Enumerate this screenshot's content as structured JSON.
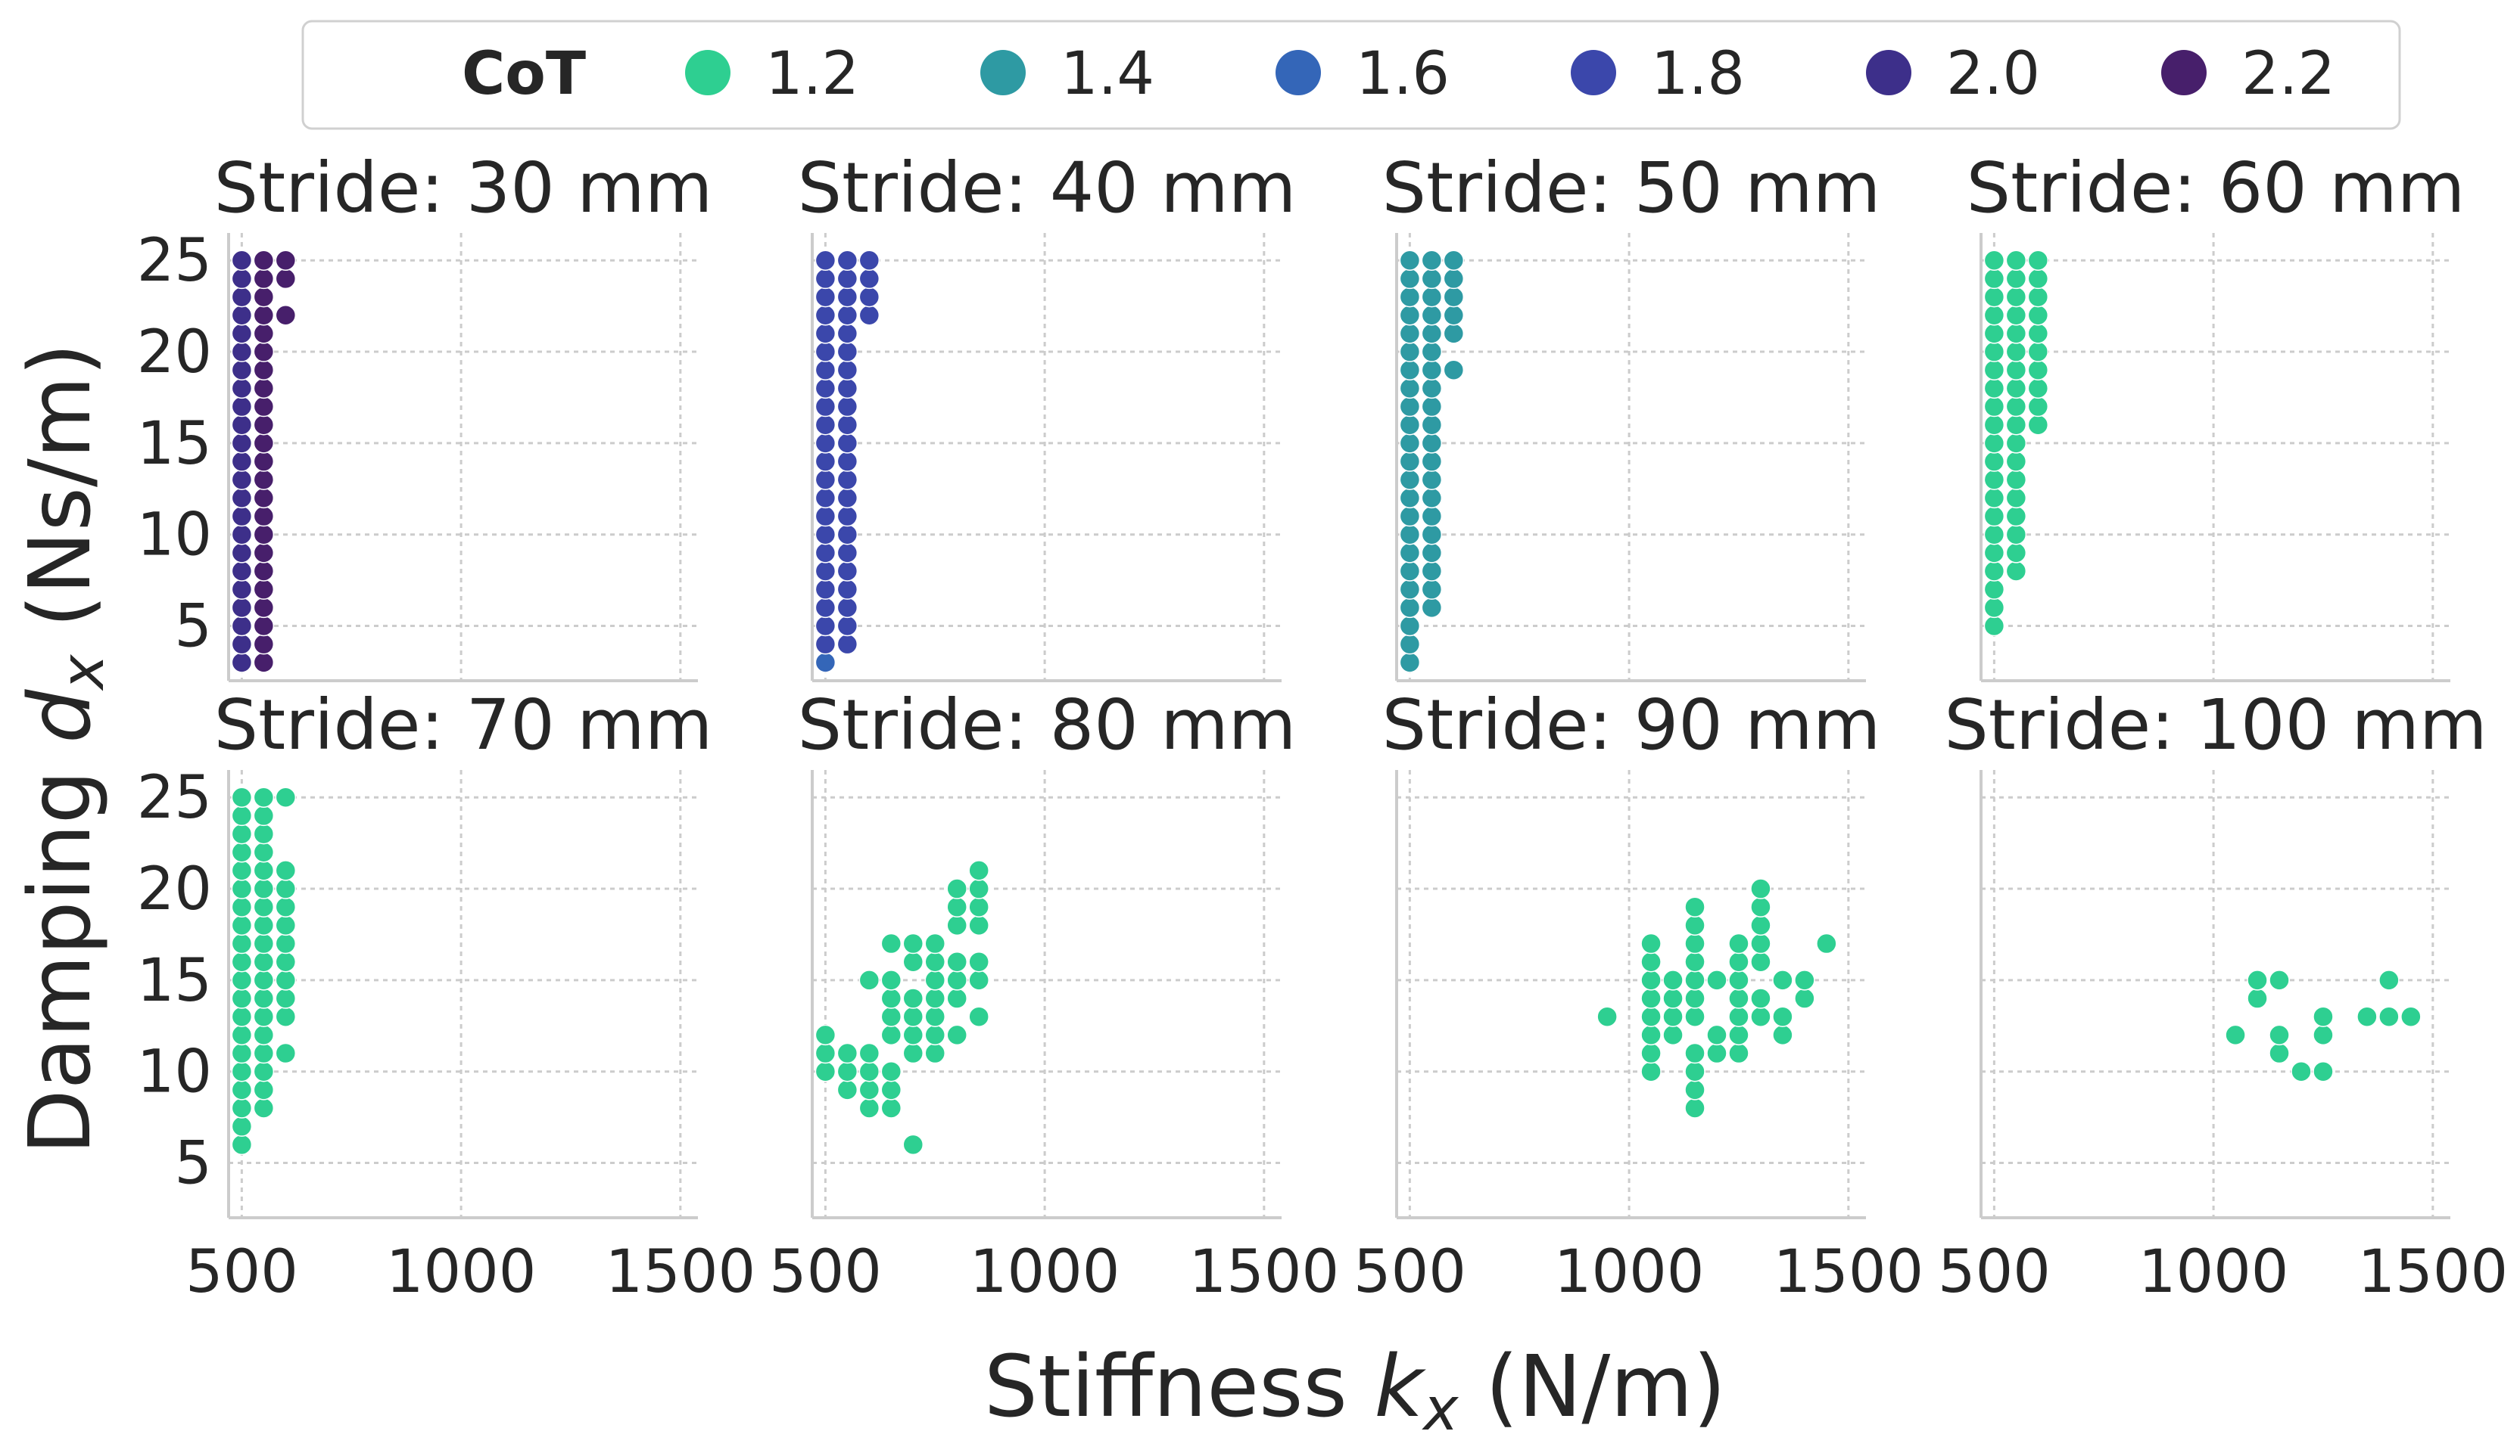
{
  "chart_data": {
    "type": "scatter",
    "title": "",
    "xlabel": "Stiffness",
    "xlabel_var": "k",
    "xlabel_sub": "x",
    "xlabel_unit": "(N/m)",
    "ylabel": "Damping",
    "ylabel_var": "d",
    "ylabel_sub": "x",
    "ylabel_unit": "(Ns/m)",
    "xlim": [
      470,
      1540
    ],
    "ylim": [
      2,
      26.5
    ],
    "xticks": [
      500,
      1000,
      1500
    ],
    "yticks": [
      5,
      10,
      15,
      20,
      25
    ],
    "grid": true,
    "legend": {
      "title": "CoT",
      "placement": "top-center",
      "entries": [
        {
          "label": "1.2",
          "color": "#2ecf91"
        },
        {
          "label": "1.4",
          "color": "#2e9aa3"
        },
        {
          "label": "1.6",
          "color": "#3466b8"
        },
        {
          "label": "1.8",
          "color": "#3b47ab"
        },
        {
          "label": "2.0",
          "color": "#3d2f8a"
        },
        {
          "label": "2.2",
          "color": "#471f6b"
        }
      ]
    },
    "panels": [
      {
        "title": "Stride: 30 mm",
        "series": [
          {
            "x": 500,
            "y": [
              3,
              4,
              5,
              6,
              7,
              8,
              9,
              10,
              11,
              12,
              13,
              14,
              15,
              16,
              17,
              18,
              19,
              20,
              21,
              22,
              23,
              24,
              25
            ],
            "color": "#3d2f8a"
          },
          {
            "x": 550,
            "y": [
              3,
              4,
              5,
              6,
              7,
              8,
              9,
              10,
              11,
              12,
              13,
              14,
              15,
              16,
              17,
              18,
              19,
              20,
              21,
              22,
              23,
              24,
              25
            ],
            "color": "#471f6b"
          },
          {
            "x": 600,
            "y": [
              22,
              24,
              25
            ],
            "color": "#471f6b"
          }
        ]
      },
      {
        "title": "Stride: 40 mm",
        "series": [
          {
            "x": 500,
            "y": [
              3
            ],
            "color": "#3466b8"
          },
          {
            "x": 500,
            "y": [
              4,
              5,
              6,
              7,
              8,
              9,
              10,
              11,
              12,
              13,
              14,
              15,
              16,
              17,
              18,
              19,
              20,
              21,
              22,
              23,
              24,
              25
            ],
            "color": "#3b47ab"
          },
          {
            "x": 550,
            "y": [
              4,
              5,
              6,
              7,
              8,
              9,
              10,
              11,
              12,
              13,
              14,
              15,
              16,
              17,
              18,
              19,
              20,
              21,
              22,
              23,
              24,
              25
            ],
            "color": "#3b47ab"
          },
          {
            "x": 600,
            "y": [
              22,
              23,
              24,
              25
            ],
            "color": "#3b47ab"
          }
        ]
      },
      {
        "title": "Stride: 50 mm",
        "series": [
          {
            "x": 500,
            "y": [
              3,
              4,
              5,
              6,
              7,
              8,
              9,
              10,
              11,
              12,
              13,
              14,
              15,
              16,
              17,
              18,
              19,
              20,
              21,
              22,
              23,
              24,
              25
            ],
            "color": "#2e9aa3"
          },
          {
            "x": 550,
            "y": [
              6,
              7,
              8,
              9,
              10,
              11,
              12,
              13,
              14,
              15,
              16,
              17,
              18,
              19,
              20,
              21,
              22,
              23,
              24,
              25
            ],
            "color": "#2e9aa3"
          },
          {
            "x": 600,
            "y": [
              19,
              21,
              22,
              23,
              24,
              25
            ],
            "color": "#2e9aa3"
          }
        ]
      },
      {
        "title": "Stride: 60 mm",
        "series": [
          {
            "x": 500,
            "y": [
              5,
              6,
              7,
              8,
              9,
              10,
              11,
              12,
              13,
              14,
              15,
              16,
              17,
              18,
              19,
              20,
              21,
              22,
              23,
              24,
              25
            ],
            "color": "#2ecf91"
          },
          {
            "x": 550,
            "y": [
              8,
              9,
              10,
              11,
              12,
              13,
              14,
              15,
              16,
              17,
              18,
              19,
              20,
              21,
              22,
              23,
              24,
              25
            ],
            "color": "#2ecf91"
          },
          {
            "x": 600,
            "y": [
              16,
              17,
              18,
              19,
              20,
              21,
              22,
              23,
              24,
              25
            ],
            "color": "#2ecf91"
          }
        ]
      },
      {
        "title": "Stride: 70 mm",
        "series": [
          {
            "x": 500,
            "y": [
              6,
              7,
              8,
              9,
              10,
              11,
              12,
              13,
              14,
              15,
              16,
              17,
              18,
              19,
              20,
              21,
              22,
              23,
              24,
              25
            ],
            "color": "#2ecf91"
          },
          {
            "x": 550,
            "y": [
              8,
              9,
              10,
              11,
              12,
              13,
              14,
              15,
              16,
              17,
              18,
              19,
              20,
              21,
              22,
              23,
              24,
              25
            ],
            "color": "#2ecf91"
          },
          {
            "x": 600,
            "y": [
              11,
              13,
              14,
              15,
              16,
              17,
              18,
              19,
              20,
              21,
              25
            ],
            "color": "#2ecf91"
          }
        ]
      },
      {
        "title": "Stride: 80 mm",
        "series": [
          {
            "x": 500,
            "y": [
              10,
              11,
              12
            ],
            "color": "#2ecf91"
          },
          {
            "x": 550,
            "y": [
              9,
              10,
              11
            ],
            "color": "#2ecf91"
          },
          {
            "x": 600,
            "y": [
              8,
              9,
              10,
              11,
              15
            ],
            "color": "#2ecf91"
          },
          {
            "x": 650,
            "y": [
              8,
              9,
              10,
              12,
              13,
              14,
              15,
              17
            ],
            "color": "#2ecf91"
          },
          {
            "x": 700,
            "y": [
              6,
              11,
              12,
              13,
              14,
              16,
              17
            ],
            "color": "#2ecf91"
          },
          {
            "x": 750,
            "y": [
              11,
              12,
              13,
              14,
              15,
              16,
              17
            ],
            "color": "#2ecf91"
          },
          {
            "x": 800,
            "y": [
              12,
              14,
              15,
              16,
              18,
              19,
              20
            ],
            "color": "#2ecf91"
          },
          {
            "x": 850,
            "y": [
              13,
              15,
              16,
              18,
              19,
              20,
              21
            ],
            "color": "#2ecf91"
          }
        ]
      },
      {
        "title": "Stride: 90 mm",
        "series": [
          {
            "x": 950,
            "y": [
              13
            ],
            "color": "#2ecf91"
          },
          {
            "x": 1050,
            "y": [
              10,
              11,
              12,
              13,
              14,
              15,
              16,
              17
            ],
            "color": "#2ecf91"
          },
          {
            "x": 1100,
            "y": [
              12,
              13,
              14,
              15
            ],
            "color": "#2ecf91"
          },
          {
            "x": 1150,
            "y": [
              8,
              9,
              10,
              11,
              13,
              14,
              15,
              16,
              17,
              18,
              19
            ],
            "color": "#2ecf91"
          },
          {
            "x": 1200,
            "y": [
              11,
              12,
              15
            ],
            "color": "#2ecf91"
          },
          {
            "x": 1250,
            "y": [
              11,
              12,
              13,
              14,
              15,
              16,
              17
            ],
            "color": "#2ecf91"
          },
          {
            "x": 1300,
            "y": [
              13,
              14,
              16,
              17,
              18,
              19,
              20
            ],
            "color": "#2ecf91"
          },
          {
            "x": 1350,
            "y": [
              12,
              13,
              15
            ],
            "color": "#2ecf91"
          },
          {
            "x": 1400,
            "y": [
              14,
              15
            ],
            "color": "#2ecf91"
          },
          {
            "x": 1450,
            "y": [
              17
            ],
            "color": "#2ecf91"
          }
        ]
      },
      {
        "title": "Stride: 100 mm",
        "series": [
          {
            "x": 1050,
            "y": [
              12
            ],
            "color": "#2ecf91"
          },
          {
            "x": 1100,
            "y": [
              14,
              15
            ],
            "color": "#2ecf91"
          },
          {
            "x": 1150,
            "y": [
              11,
              12,
              15
            ],
            "color": "#2ecf91"
          },
          {
            "x": 1200,
            "y": [
              10
            ],
            "color": "#2ecf91"
          },
          {
            "x": 1250,
            "y": [
              10,
              12,
              13
            ],
            "color": "#2ecf91"
          },
          {
            "x": 1350,
            "y": [
              13
            ],
            "color": "#2ecf91"
          },
          {
            "x": 1400,
            "y": [
              13,
              15
            ],
            "color": "#2ecf91"
          },
          {
            "x": 1450,
            "y": [
              13
            ],
            "color": "#2ecf91"
          }
        ]
      }
    ]
  }
}
